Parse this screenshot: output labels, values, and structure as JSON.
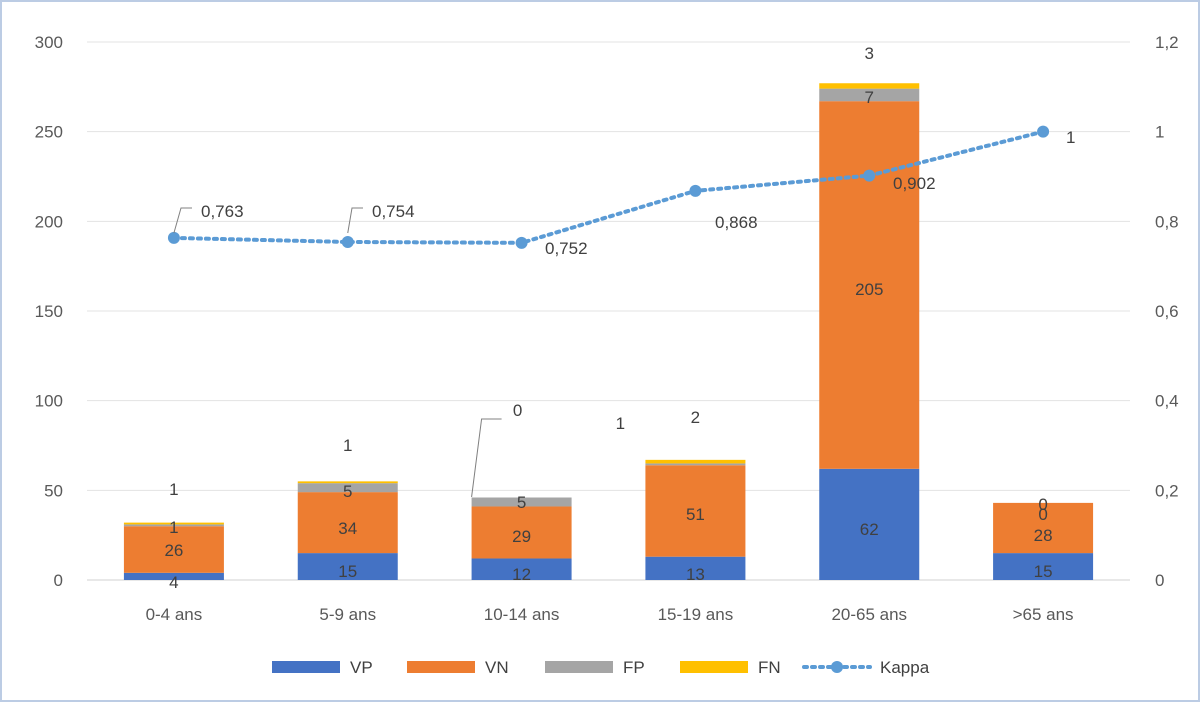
{
  "chart_data": {
    "type": "bar",
    "stacked": true,
    "categories": [
      "0-4 ans",
      "5-9 ans",
      "10-14 ans",
      "15-19 ans",
      "20-65 ans",
      ">65 ans"
    ],
    "series": [
      {
        "name": "VP",
        "color": "#4472C4",
        "values": [
          4,
          15,
          12,
          13,
          62,
          15
        ]
      },
      {
        "name": "VN",
        "color": "#ED7D31",
        "values": [
          26,
          34,
          29,
          51,
          205,
          28
        ]
      },
      {
        "name": "FP",
        "color": "#A5A5A5",
        "values": [
          1,
          5,
          5,
          1,
          7,
          0
        ]
      },
      {
        "name": "FN",
        "color": "#FFC000",
        "values": [
          1,
          1,
          0,
          2,
          3,
          0
        ]
      }
    ],
    "line_series": {
      "name": "Kappa",
      "color": "#5B9BD5",
      "axis": "right",
      "values": [
        0.763,
        0.754,
        0.752,
        0.868,
        0.902,
        1
      ],
      "labels": [
        "0,763",
        "0,754",
        "0,752",
        "0,868",
        "0,902",
        "1"
      ]
    },
    "bar_labels": {
      "VP": [
        "4",
        "15",
        "12",
        "13",
        "62",
        "15"
      ],
      "VN": [
        "26",
        "34",
        "29",
        "51",
        "205",
        "28"
      ],
      "FP": [
        "1",
        "5",
        "5",
        "1",
        "7",
        "0"
      ],
      "FN": [
        "1",
        "1",
        "0",
        "2",
        "3",
        "0"
      ]
    },
    "ylim_left": [
      0,
      300
    ],
    "ylim_right": [
      0,
      1.2
    ],
    "yticks_left": [
      "0",
      "50",
      "100",
      "150",
      "200",
      "250",
      "300"
    ],
    "yticks_right": [
      "0",
      "0,2",
      "0,4",
      "0,6",
      "0,8",
      "1",
      "1,2"
    ],
    "grid": true,
    "legend_position": "bottom",
    "legend": [
      "VP",
      "VN",
      "FP",
      "FN",
      "Kappa"
    ]
  }
}
